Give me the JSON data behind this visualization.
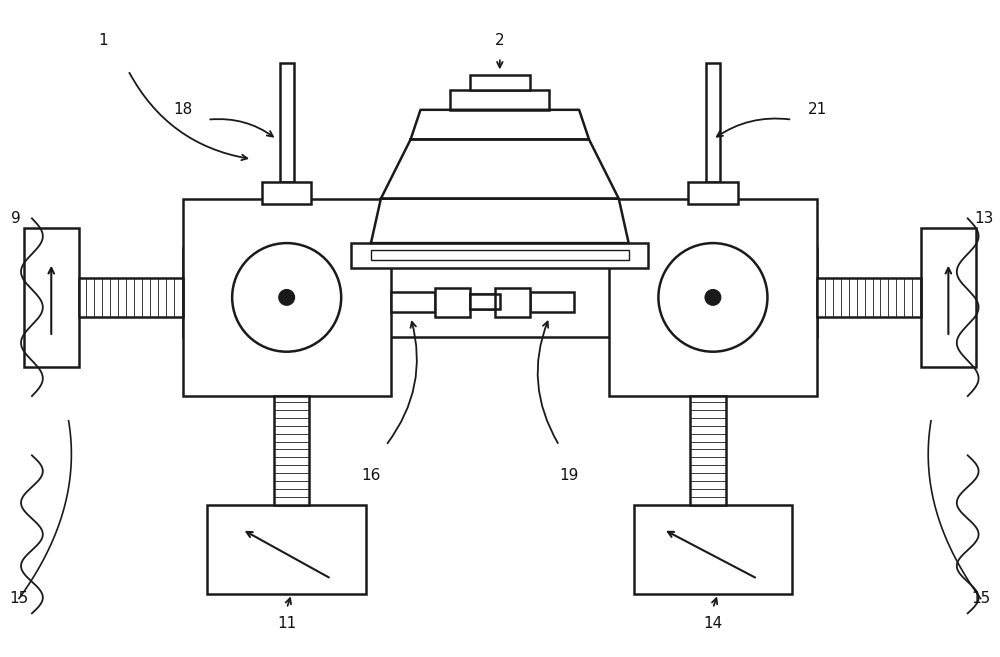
{
  "bg_color": "#ffffff",
  "line_color": "#1a1a1a",
  "lw_main": 1.8,
  "lw_thin": 1.0,
  "lw_label": 1.2
}
